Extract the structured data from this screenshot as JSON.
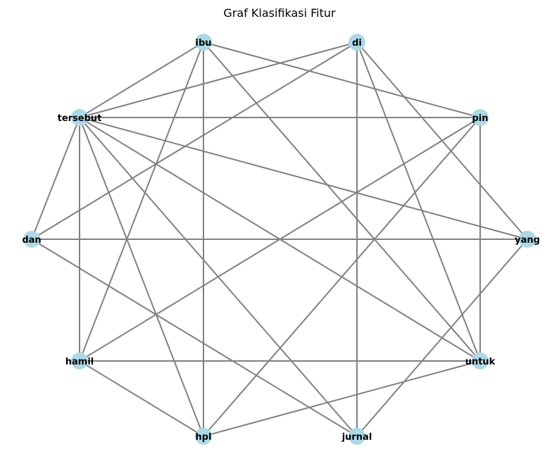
{
  "title": "Graf Klasifikasi Fitur",
  "colors": {
    "node": "#add8e6",
    "edge": "#808080",
    "label": "#000000"
  },
  "nodes": [
    {
      "id": "ibu",
      "label": "ibu"
    },
    {
      "id": "di",
      "label": "di"
    },
    {
      "id": "pin",
      "label": "pin"
    },
    {
      "id": "yang",
      "label": "yang"
    },
    {
      "id": "untuk",
      "label": "untuk"
    },
    {
      "id": "jurnal",
      "label": "jurnal"
    },
    {
      "id": "hpl",
      "label": "hpl"
    },
    {
      "id": "hamil",
      "label": "hamil"
    },
    {
      "id": "dan",
      "label": "dan"
    },
    {
      "id": "tersebut",
      "label": "tersebut"
    }
  ],
  "edges": [
    [
      "tersebut",
      "ibu"
    ],
    [
      "tersebut",
      "di"
    ],
    [
      "tersebut",
      "pin"
    ],
    [
      "tersebut",
      "yang"
    ],
    [
      "tersebut",
      "untuk"
    ],
    [
      "tersebut",
      "jurnal"
    ],
    [
      "tersebut",
      "hpl"
    ],
    [
      "tersebut",
      "hamil"
    ],
    [
      "tersebut",
      "dan"
    ],
    [
      "ibu",
      "pin"
    ],
    [
      "ibu",
      "untuk"
    ],
    [
      "ibu",
      "hpl"
    ],
    [
      "ibu",
      "hamil"
    ],
    [
      "di",
      "dan"
    ],
    [
      "di",
      "jurnal"
    ],
    [
      "di",
      "untuk"
    ],
    [
      "di",
      "yang"
    ],
    [
      "pin",
      "untuk"
    ],
    [
      "pin",
      "hamil"
    ],
    [
      "pin",
      "hpl"
    ],
    [
      "dan",
      "yang"
    ],
    [
      "dan",
      "jurnal"
    ],
    [
      "yang",
      "jurnal"
    ],
    [
      "hamil",
      "untuk"
    ],
    [
      "hamil",
      "hpl"
    ],
    [
      "hpl",
      "untuk"
    ]
  ]
}
